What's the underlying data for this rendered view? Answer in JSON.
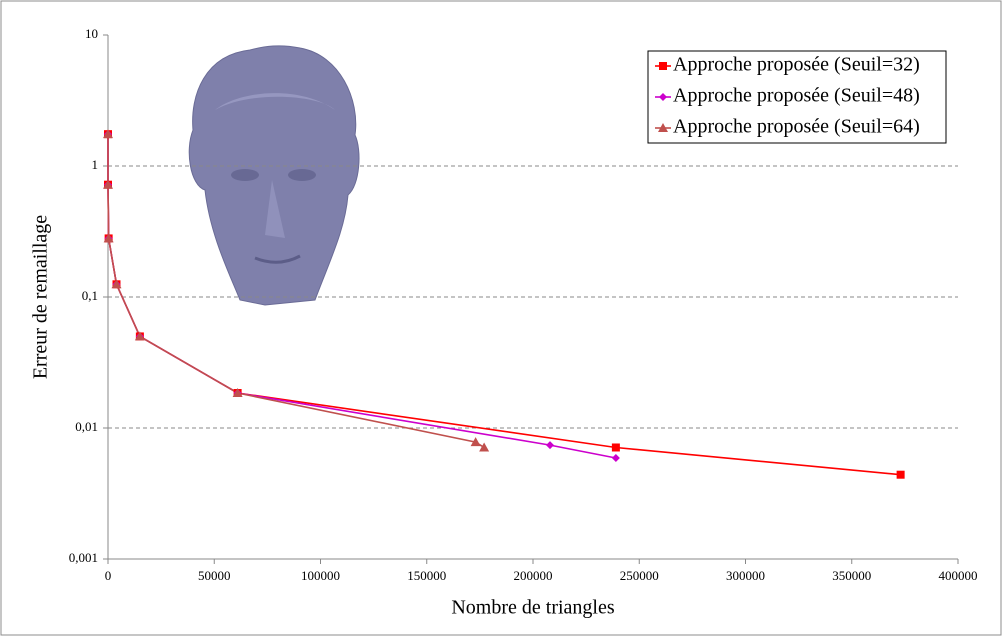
{
  "chart_data": {
    "type": "line",
    "log_y": true,
    "grid": true,
    "legend": "top-right",
    "xlabel": "Nombre de triangles",
    "ylabel": "Erreur de remaillage",
    "xlim": [
      0,
      400000
    ],
    "xticks": [
      0,
      50000,
      100000,
      150000,
      200000,
      250000,
      300000,
      350000,
      400000
    ],
    "ylim": [
      0.001,
      10
    ],
    "yticks": [
      {
        "value": 0.001,
        "label": "0,001"
      },
      {
        "value": 0.01,
        "label": "0,01"
      },
      {
        "value": 0.1,
        "label": "0,1"
      },
      1,
      10
    ],
    "series": [
      {
        "name": "Approche proposée (Seuil=32)",
        "color": "#ff0000",
        "marker": "square",
        "x": [
          0,
          0,
          300,
          4000,
          15000,
          61000,
          239000,
          373000
        ],
        "values": [
          1.75,
          0.72,
          0.28,
          0.125,
          0.05,
          0.0185,
          0.0071,
          0.0044
        ]
      },
      {
        "name": "Approche proposée (Seuil=48)",
        "color": "#cc00cc",
        "marker": "diamond",
        "x": [
          0,
          0,
          300,
          4000,
          15000,
          61000,
          208000,
          239000
        ],
        "values": [
          1.75,
          0.72,
          0.28,
          0.125,
          0.05,
          0.0185,
          0.0074,
          0.0059
        ]
      },
      {
        "name": "Approche proposée (Seuil=64)",
        "color": "#c0504d",
        "marker": "triangle",
        "x": [
          0,
          0,
          300,
          4000,
          15000,
          61000,
          173000,
          177000
        ],
        "values": [
          1.75,
          0.72,
          0.28,
          0.125,
          0.05,
          0.0185,
          0.0078,
          0.0071
        ]
      }
    ]
  }
}
